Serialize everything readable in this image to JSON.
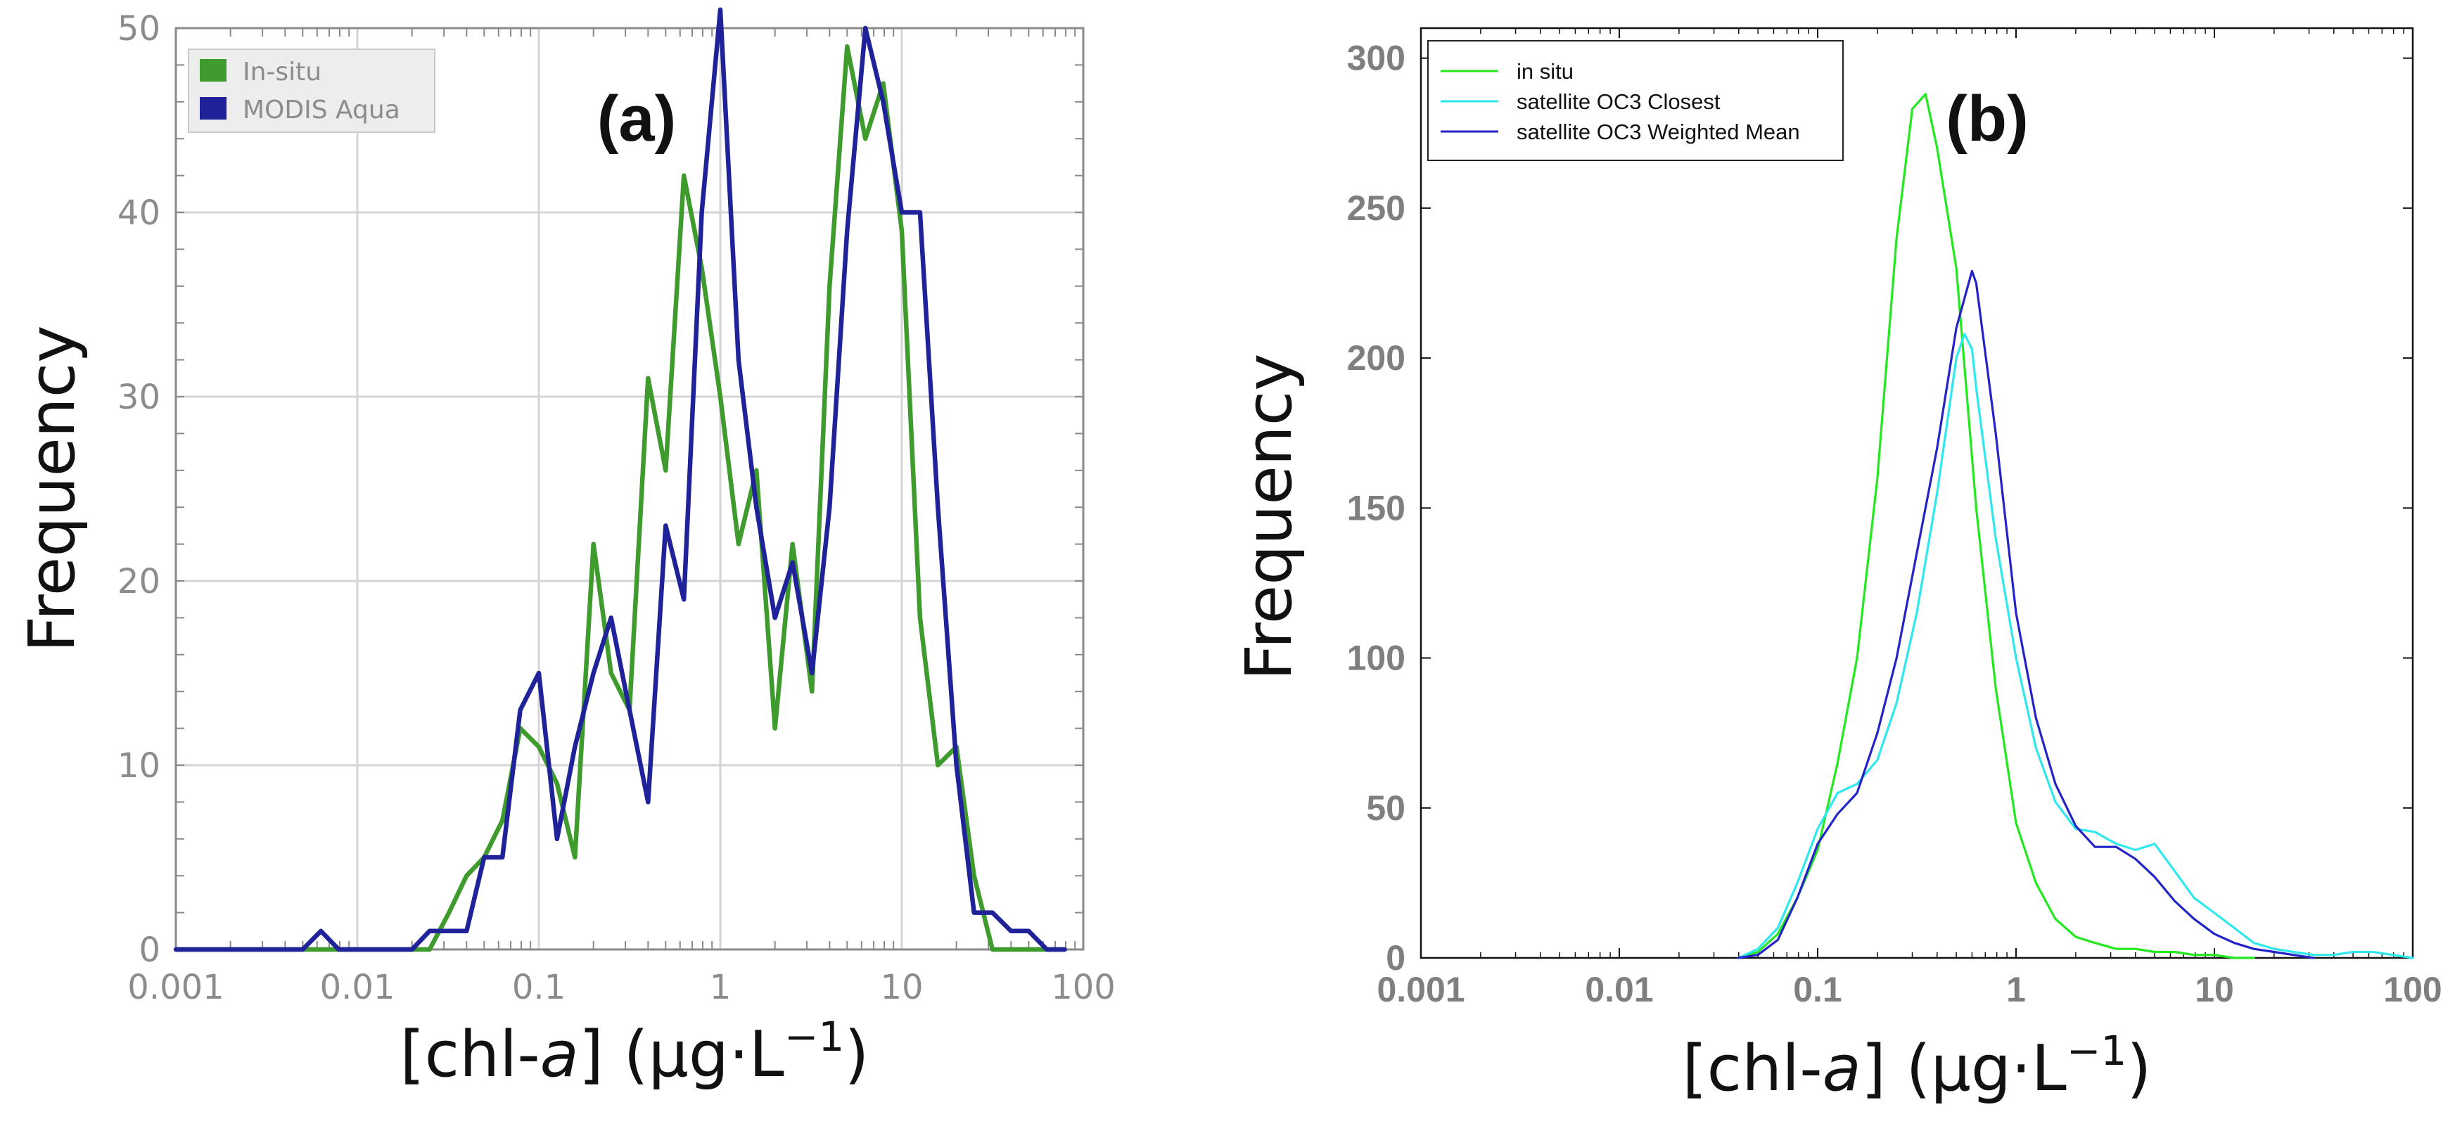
{
  "chart_data": [
    {
      "type": "line",
      "panel_label": "(a)",
      "xlabel": "[chl-a] (µg·L⁻¹)",
      "xlabel_parts": {
        "pre": "[chl-",
        "italic": "a",
        "post": "] (µg·L",
        "sup": "−1",
        "close": ")"
      },
      "ylabel": "Frequency",
      "x_scale": "log",
      "xlim": [
        0.001,
        100
      ],
      "ylim": [
        0,
        50
      ],
      "x_ticks": [
        "0.001",
        "0.01",
        "0.1",
        "1",
        "10",
        "100"
      ],
      "y_ticks": [
        "0",
        "10",
        "20",
        "30",
        "40",
        "50"
      ],
      "grid": true,
      "legend_position": "top-left",
      "series": [
        {
          "name": "In-situ",
          "color": "#3f9b2e",
          "x": [
            0.001,
            0.0025,
            0.005,
            0.0063,
            0.0079,
            0.01,
            0.016,
            0.02,
            0.025,
            0.032,
            0.04,
            0.05,
            0.063,
            0.079,
            0.1,
            0.126,
            0.158,
            0.2,
            0.25,
            0.316,
            0.4,
            0.5,
            0.63,
            0.79,
            1.0,
            1.26,
            1.58,
            2.0,
            2.5,
            3.2,
            4.0,
            5.0,
            6.3,
            7.9,
            10,
            12.6,
            15.8,
            20,
            25,
            31.6,
            40,
            50,
            63,
            79
          ],
          "y": [
            0,
            0,
            0,
            0,
            0,
            0,
            0,
            0,
            0,
            2,
            4,
            5,
            7,
            12,
            11,
            9,
            5,
            22,
            15,
            13,
            31,
            26,
            42,
            37,
            30,
            22,
            26,
            12,
            22,
            14,
            36,
            49,
            44,
            47,
            39,
            18,
            10,
            11,
            4,
            0,
            0,
            0,
            0,
            0
          ]
        },
        {
          "name": "MODIS Aqua",
          "color": "#1f2299",
          "x": [
            0.001,
            0.0025,
            0.005,
            0.0063,
            0.0079,
            0.01,
            0.016,
            0.02,
            0.025,
            0.032,
            0.04,
            0.05,
            0.063,
            0.079,
            0.1,
            0.126,
            0.158,
            0.2,
            0.25,
            0.316,
            0.4,
            0.5,
            0.63,
            0.79,
            1.0,
            1.26,
            1.58,
            2.0,
            2.5,
            3.2,
            4.0,
            5.0,
            6.3,
            7.9,
            10,
            12.6,
            15.8,
            20,
            25,
            31.6,
            40,
            50,
            63,
            79
          ],
          "y": [
            0,
            0,
            0,
            1,
            0,
            0,
            0,
            0,
            1,
            1,
            1,
            5,
            5,
            13,
            15,
            6,
            11,
            15,
            18,
            13,
            8,
            23,
            19,
            40,
            51,
            32,
            24,
            18,
            21,
            15,
            24,
            39,
            50,
            46,
            40,
            40,
            24,
            10,
            2,
            2,
            1,
            1,
            0,
            0
          ]
        }
      ]
    },
    {
      "type": "line",
      "panel_label": "(b)",
      "xlabel": "[chl-a] (µg·L⁻¹)",
      "xlabel_parts": {
        "pre": "[chl-",
        "italic": "a",
        "post": "] (µg·L",
        "sup": "−1",
        "close": ")"
      },
      "ylabel": "Frequency",
      "x_scale": "log",
      "xlim": [
        0.001,
        100
      ],
      "ylim": [
        0,
        310
      ],
      "x_ticks": [
        "0.001",
        "0.01",
        "0.1",
        "1",
        "10",
        "100"
      ],
      "y_ticks": [
        "0",
        "50",
        "100",
        "150",
        "200",
        "250",
        "300"
      ],
      "grid": false,
      "legend_position": "top-left",
      "series": [
        {
          "name": "in situ",
          "color": "#22e81e",
          "x": [
            0.04,
            0.05,
            0.063,
            0.079,
            0.1,
            0.126,
            0.158,
            0.2,
            0.25,
            0.3,
            0.35,
            0.4,
            0.5,
            0.63,
            0.79,
            1.0,
            1.26,
            1.58,
            2.0,
            2.5,
            3.2,
            4.0,
            5.0,
            6.3,
            7.9,
            10,
            12.6,
            15.8
          ],
          "y": [
            0,
            2,
            8,
            20,
            36,
            65,
            100,
            160,
            240,
            283,
            288,
            270,
            230,
            150,
            90,
            45,
            25,
            13,
            7,
            5,
            3,
            3,
            2,
            2,
            1,
            1,
            0,
            0
          ]
        },
        {
          "name": "satellite OC3 Closest",
          "color": "#2ee8ee",
          "x": [
            0.04,
            0.05,
            0.063,
            0.079,
            0.1,
            0.126,
            0.158,
            0.2,
            0.25,
            0.316,
            0.4,
            0.5,
            0.55,
            0.6,
            0.63,
            0.79,
            1.0,
            1.26,
            1.58,
            2.0,
            2.5,
            3.2,
            4.0,
            5.0,
            6.3,
            7.9,
            10,
            12.6,
            15.8,
            20,
            25,
            31.6,
            40,
            50,
            63,
            79,
            100
          ],
          "y": [
            0,
            3,
            10,
            25,
            43,
            55,
            58,
            66,
            85,
            115,
            155,
            200,
            208,
            203,
            190,
            140,
            100,
            70,
            52,
            43,
            42,
            38,
            36,
            38,
            29,
            20,
            15,
            10,
            5,
            3,
            2,
            1,
            1,
            2,
            2,
            1,
            0
          ]
        },
        {
          "name": "satellite OC3 Weighted Mean",
          "color": "#2323c8",
          "x": [
            0.04,
            0.05,
            0.063,
            0.079,
            0.1,
            0.126,
            0.158,
            0.2,
            0.25,
            0.316,
            0.4,
            0.5,
            0.6,
            0.63,
            0.79,
            1.0,
            1.26,
            1.58,
            2.0,
            2.5,
            3.2,
            4.0,
            5.0,
            6.3,
            7.9,
            10,
            12.6,
            15.8,
            20,
            25,
            31.6
          ],
          "y": [
            0,
            1,
            6,
            20,
            38,
            48,
            55,
            75,
            100,
            135,
            170,
            210,
            229,
            225,
            175,
            115,
            80,
            58,
            44,
            37,
            37,
            33,
            27,
            19,
            13,
            8,
            5,
            3,
            2,
            1,
            0
          ]
        }
      ]
    }
  ]
}
